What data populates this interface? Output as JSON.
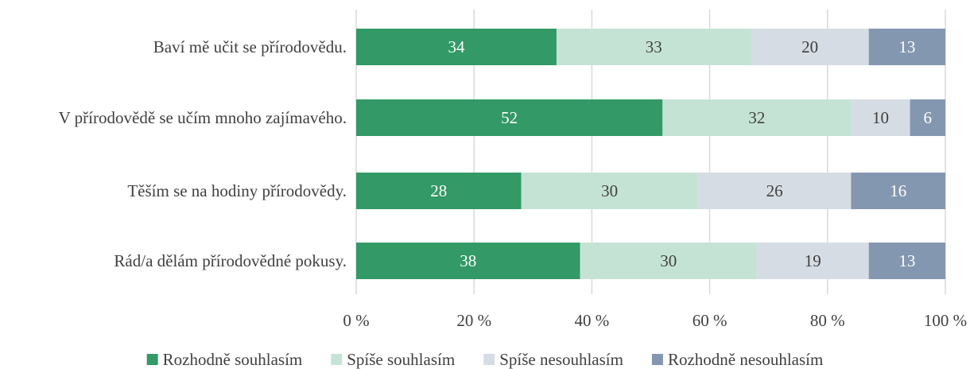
{
  "chart_data": {
    "type": "bar",
    "orientation": "horizontal",
    "stacked": true,
    "normalized": true,
    "categories": [
      "Baví mě učit se přírodovědu.",
      "V přírodovědě se učím mnoho zajímavého.",
      "Těším se na hodiny přírodovědy.",
      "Rád/a dělám přírodovědné pokusy."
    ],
    "series": [
      {
        "name": "Rozhodně souhlasím",
        "values": [
          34,
          52,
          28,
          38
        ],
        "color": "#339966",
        "label_color": "#ffffff"
      },
      {
        "name": "Spíše souhlasím",
        "values": [
          33,
          32,
          30,
          30
        ],
        "color": "#c5e3d5",
        "label_color": "#404040"
      },
      {
        "name": "Spíše nesouhlasím",
        "values": [
          20,
          10,
          26,
          19
        ],
        "color": "#d6dce4",
        "label_color": "#404040"
      },
      {
        "name": "Rozhodně nesouhlasím",
        "values": [
          13,
          6,
          16,
          13
        ],
        "color": "#8497b0",
        "label_color": "#ffffff"
      }
    ],
    "xlim": [
      0,
      100
    ],
    "x_ticks": [
      "0 %",
      "20 %",
      "40 %",
      "60 %",
      "80 %",
      "100 %"
    ],
    "grid": true,
    "legend_position": "bottom",
    "title": "",
    "xlabel": "",
    "ylabel": ""
  }
}
